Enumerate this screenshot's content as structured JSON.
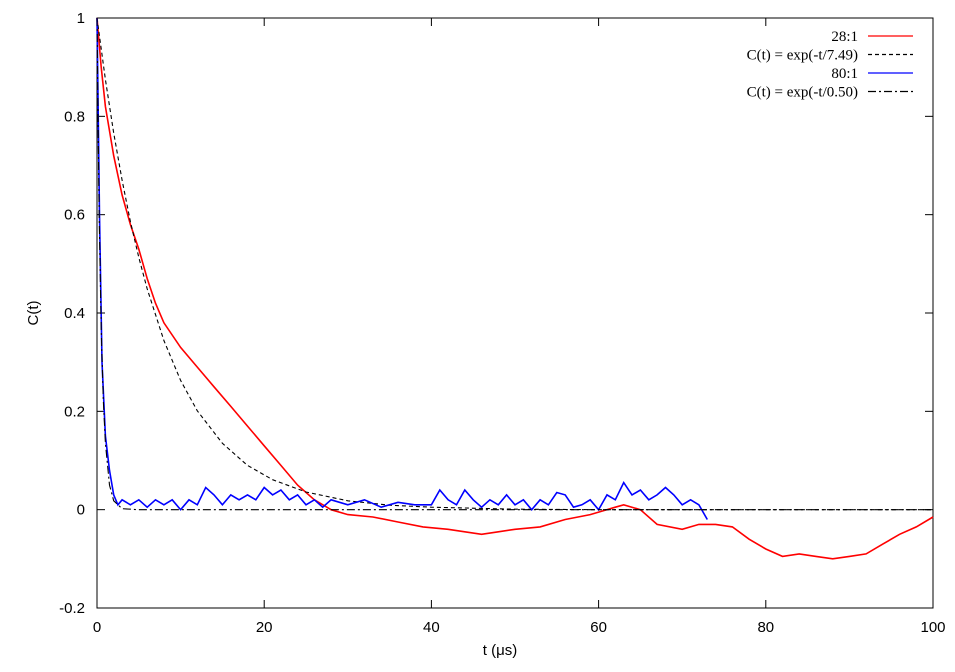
{
  "chart_data": {
    "type": "line",
    "x_label": "t (μs)",
    "y_label": "C(t)",
    "xlim": [
      0,
      100
    ],
    "xticks": [
      0,
      20,
      40,
      60,
      80,
      100
    ],
    "ylim": [
      -0.2,
      1
    ],
    "yticks": [
      -0.2,
      0,
      0.2,
      0.4,
      0.6,
      0.8,
      1
    ],
    "legend": "upper-right",
    "series": [
      {
        "name": "28:1",
        "color": "#ff0000",
        "style": "solid",
        "x": [
          0,
          0.5,
          1,
          2,
          3,
          4,
          5,
          6,
          7,
          8,
          10,
          12,
          14,
          16,
          18,
          20,
          22,
          24,
          26,
          28,
          30,
          33,
          36,
          39,
          42,
          44,
          46,
          48,
          50,
          53,
          56,
          59,
          62,
          63,
          65,
          67,
          70,
          72,
          74,
          76,
          78,
          80,
          82,
          84,
          86,
          88,
          90,
          92,
          94,
          96,
          98,
          100
        ],
        "values": [
          1,
          0.9,
          0.82,
          0.72,
          0.64,
          0.58,
          0.53,
          0.47,
          0.42,
          0.38,
          0.33,
          0.29,
          0.25,
          0.21,
          0.17,
          0.13,
          0.09,
          0.05,
          0.02,
          0.0,
          -0.01,
          -0.015,
          -0.025,
          -0.035,
          -0.04,
          -0.045,
          -0.05,
          -0.045,
          -0.04,
          -0.035,
          -0.02,
          -0.01,
          0.005,
          0.01,
          0.0,
          -0.03,
          -0.04,
          -0.03,
          -0.03,
          -0.035,
          -0.06,
          -0.08,
          -0.095,
          -0.09,
          -0.095,
          -0.1,
          -0.095,
          -0.09,
          -0.07,
          -0.05,
          -0.035,
          -0.015
        ]
      },
      {
        "name": "C(t) = exp(-t/7.49)",
        "color": "#000000",
        "style": "dashed",
        "x": [
          0,
          1,
          2,
          3,
          4,
          5,
          6,
          8,
          10,
          12,
          15,
          18,
          21,
          25,
          30,
          35,
          40,
          50,
          60,
          100
        ],
        "values": [
          1,
          0.875,
          0.766,
          0.67,
          0.586,
          0.513,
          0.449,
          0.344,
          0.263,
          0.201,
          0.135,
          0.09,
          0.061,
          0.036,
          0.018,
          0.009,
          0.005,
          0.001,
          0,
          0
        ]
      },
      {
        "name": "80:1",
        "color": "#0000ff",
        "style": "solid",
        "x": [
          0,
          0.3,
          0.6,
          1,
          1.5,
          2,
          2.5,
          3,
          4,
          5,
          6,
          7,
          8,
          9,
          10,
          11,
          12,
          13,
          14,
          15,
          16,
          17,
          18,
          19,
          20,
          21,
          22,
          23,
          24,
          25,
          26,
          27,
          28,
          30,
          32,
          34,
          36,
          38,
          40,
          41,
          42,
          43,
          44,
          45,
          46,
          47,
          48,
          49,
          50,
          51,
          52,
          53,
          54,
          55,
          56,
          57,
          58,
          59,
          60,
          61,
          62,
          63,
          64,
          65,
          66,
          67,
          68,
          69,
          70,
          71,
          72,
          73
        ],
        "values": [
          1,
          0.6,
          0.3,
          0.15,
          0.08,
          0.03,
          0.01,
          0.02,
          0.01,
          0.02,
          0.005,
          0.02,
          0.01,
          0.02,
          0.0,
          0.02,
          0.01,
          0.045,
          0.03,
          0.01,
          0.03,
          0.02,
          0.03,
          0.02,
          0.045,
          0.03,
          0.04,
          0.02,
          0.03,
          0.01,
          0.02,
          0.005,
          0.02,
          0.01,
          0.02,
          0.005,
          0.015,
          0.01,
          0.01,
          0.04,
          0.02,
          0.01,
          0.04,
          0.02,
          0.005,
          0.02,
          0.01,
          0.03,
          0.01,
          0.02,
          0.0,
          0.02,
          0.01,
          0.035,
          0.03,
          0.005,
          0.01,
          0.02,
          0.0,
          0.03,
          0.02,
          0.055,
          0.03,
          0.04,
          0.02,
          0.03,
          0.045,
          0.03,
          0.01,
          0.02,
          0.01,
          -0.02
        ]
      },
      {
        "name": "C(t) = exp(-t/0.50)",
        "color": "#000000",
        "style": "dashdot",
        "x": [
          0,
          0.25,
          0.5,
          0.75,
          1,
          1.5,
          2,
          3,
          5,
          100
        ],
        "values": [
          1,
          0.607,
          0.368,
          0.223,
          0.135,
          0.05,
          0.018,
          0.002,
          0,
          0
        ]
      }
    ]
  }
}
